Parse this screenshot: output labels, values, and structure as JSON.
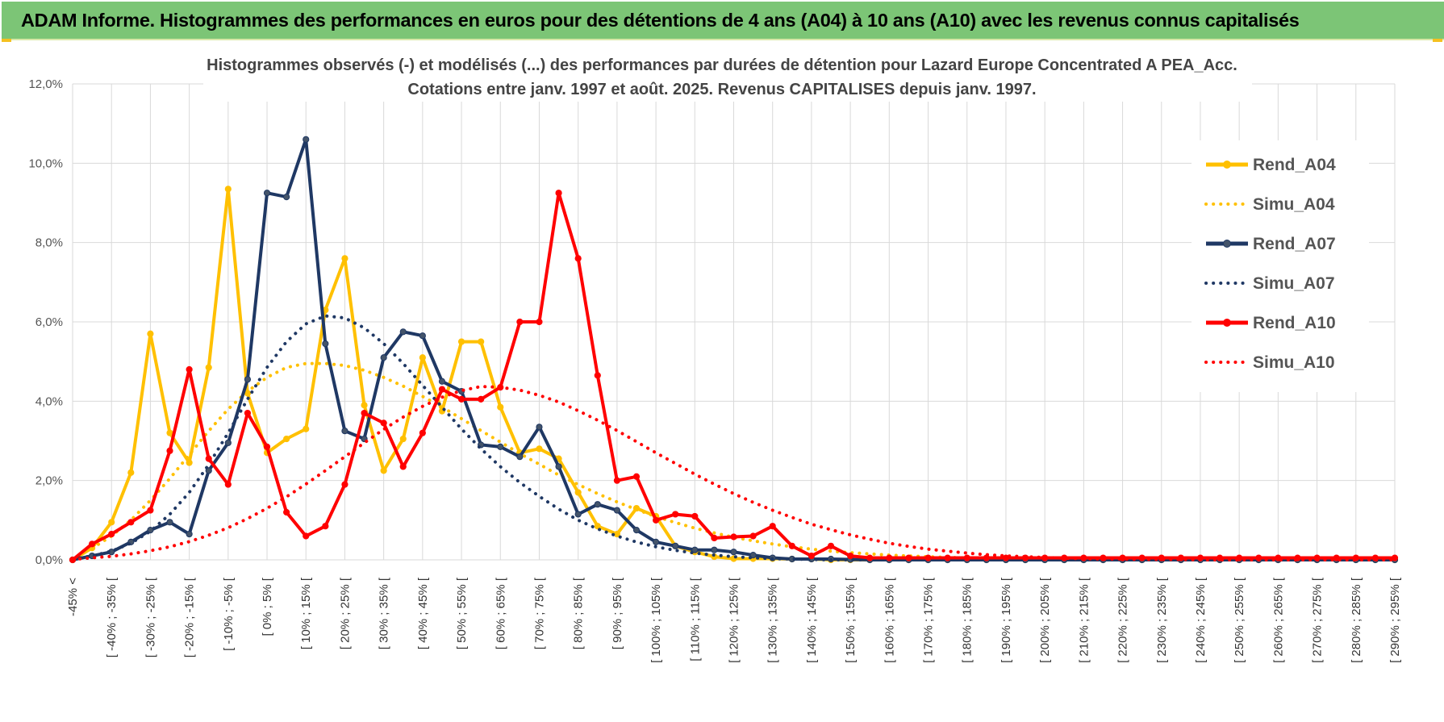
{
  "banner": {
    "title": "ADAM Informe. Histogrammes des performances en euros pour des détentions de 4 ans (A04) à 10 ans (A10) avec les revenus connus capitalisés"
  },
  "colors": {
    "banner_bg": "#7cc576",
    "A04": "#ffc000",
    "A07": "#1f3864",
    "A10": "#ff0000",
    "grid": "#d9d9d9"
  },
  "chart_data": {
    "type": "line",
    "title": "Histogrammes observés (-) et modélisés (...) des performances par durées de détention pour Lazard Europe Concentrated A PEA_Acc.",
    "subtitle": "Cotations entre janv. 1997 et août. 2025. Revenus CAPITALISES depuis janv. 1997.",
    "ylim": [
      0,
      12
    ],
    "yticks": [
      "0,0%",
      "2,0%",
      "4,0%",
      "6,0%",
      "8,0%",
      "10,0%",
      "12,0%"
    ],
    "x_labels": [
      "-45% <",
      "[ -40% ; -35% [",
      "[ -30% ; -25% [",
      "[ -20% ; -15% [",
      "[ -10% ; -5% [",
      "[ 0% ; 5% [",
      "[ 10% ; 15% [",
      "[ 20% ; 25% [",
      "[ 30% ; 35% [",
      "[ 40% ; 45% [",
      "[ 50% ; 55% [",
      "[ 60% ; 65% [",
      "[ 70% ; 75% [",
      "[ 80% ; 85% [",
      "[ 90% ; 95% [",
      "[ 100% ; 105% [",
      "[ 110% ; 115% [",
      "[ 120% ; 125% [",
      "[ 130% ; 135% [",
      "[ 140% ; 145% [",
      "[ 150% ; 155% [",
      "[ 160% ; 165% [",
      "[ 170% ; 175% [",
      "[ 180% ; 185% [",
      "[ 190% ; 195% [",
      "[ 200% ; 205% [",
      "[ 210% ; 215% [",
      "[ 220% ; 225% [",
      "[ 230% ; 235% [",
      "[ 240% ; 245% [",
      "[ 250% ; 255% [",
      "[ 260% ; 265% [",
      "[ 270% ; 275% [",
      "[ 280% ; 285% [",
      "[ 290% ; 295% ["
    ],
    "n_bins": 69,
    "legend": {
      "position": "right"
    },
    "grid": true,
    "series": [
      {
        "name": "Rend_A04",
        "style": "solid-marker",
        "color": "#ffc000",
        "values": [
          0.0,
          0.3,
          0.95,
          2.2,
          5.7,
          3.2,
          2.45,
          4.85,
          9.35,
          4.2,
          2.7,
          3.05,
          3.3,
          6.3,
          7.6,
          3.9,
          2.25,
          3.05,
          5.1,
          3.75,
          5.5,
          5.5,
          3.85,
          2.7,
          2.8,
          2.55,
          1.7,
          0.85,
          0.65,
          1.3,
          1.1,
          0.35,
          0.2,
          0.08,
          0.03,
          0.03,
          0.03,
          0.02,
          0.02,
          0.0,
          0.0,
          0.0,
          0.0,
          0.0,
          0.0,
          0.0,
          0.0,
          0.0,
          0.0,
          0.0,
          0.0,
          0.0,
          0.0,
          0.0,
          0.0,
          0.0,
          0.0,
          0.0,
          0.0,
          0.0,
          0.0,
          0.0,
          0.0,
          0.0,
          0.0,
          0.0,
          0.0,
          0.0,
          0.0
        ]
      },
      {
        "name": "Simu_A04",
        "style": "dotted",
        "color": "#ffc000",
        "values": [
          0.04,
          0.29,
          0.6,
          1.0,
          1.5,
          2.05,
          2.65,
          3.25,
          3.8,
          4.25,
          4.6,
          4.85,
          4.95,
          4.95,
          4.9,
          4.78,
          4.6,
          4.38,
          4.12,
          3.85,
          3.56,
          3.26,
          2.97,
          2.68,
          2.41,
          2.14,
          1.9,
          1.67,
          1.46,
          1.27,
          1.09,
          0.94,
          0.8,
          0.68,
          0.57,
          0.48,
          0.4,
          0.33,
          0.27,
          0.22,
          0.18,
          0.15,
          0.12,
          0.1,
          0.08,
          0.06,
          0.05,
          0.04,
          0.03,
          0.02,
          0.02,
          0.01,
          0.01,
          0.01,
          0.0,
          0.0,
          0.0,
          0.0,
          0.0,
          0.0,
          0.0,
          0.0,
          0.0,
          0.0,
          0.0,
          0.0,
          0.0,
          0.0,
          0.0
        ]
      },
      {
        "name": "Rend_A07",
        "style": "solid-marker",
        "color": "#1f3864",
        "values": [
          0.0,
          0.1,
          0.2,
          0.45,
          0.75,
          0.95,
          0.65,
          2.25,
          2.95,
          4.55,
          9.25,
          9.15,
          10.6,
          5.45,
          3.25,
          3.05,
          5.1,
          5.75,
          5.65,
          4.5,
          4.25,
          2.9,
          2.85,
          2.6,
          3.35,
          2.35,
          1.15,
          1.4,
          1.25,
          0.75,
          0.45,
          0.35,
          0.25,
          0.25,
          0.2,
          0.12,
          0.05,
          0.02,
          0.02,
          0.02,
          0.01,
          0.0,
          0.0,
          0.0,
          0.0,
          0.0,
          0.0,
          0.0,
          0.0,
          0.0,
          0.0,
          0.0,
          0.0,
          0.0,
          0.0,
          0.0,
          0.0,
          0.0,
          0.0,
          0.0,
          0.0,
          0.0,
          0.0,
          0.0,
          0.0,
          0.0,
          0.0,
          0.0,
          0.0
        ]
      },
      {
        "name": "Simu_A07",
        "style": "dotted",
        "color": "#1f3864",
        "values": [
          0.02,
          0.1,
          0.22,
          0.42,
          0.72,
          1.15,
          1.7,
          2.4,
          3.2,
          4.05,
          4.85,
          5.5,
          5.95,
          6.15,
          6.1,
          5.85,
          5.45,
          4.95,
          4.4,
          3.85,
          3.3,
          2.8,
          2.35,
          1.95,
          1.6,
          1.28,
          1.0,
          0.78,
          0.6,
          0.45,
          0.33,
          0.24,
          0.17,
          0.12,
          0.08,
          0.05,
          0.03,
          0.02,
          0.01,
          0.0,
          0.0,
          0.0,
          0.0,
          0.0,
          0.0,
          0.0,
          0.0,
          0.0,
          0.0,
          0.0,
          0.0,
          0.0,
          0.0,
          0.0,
          0.0,
          0.0,
          0.0,
          0.0,
          0.0,
          0.0,
          0.0,
          0.0,
          0.0,
          0.0,
          0.0,
          0.0,
          0.0,
          0.0,
          0.0
        ]
      },
      {
        "name": "Rend_A10",
        "style": "solid-marker",
        "color": "#ff0000",
        "values": [
          0.0,
          0.4,
          0.65,
          0.95,
          1.25,
          2.75,
          4.8,
          2.55,
          1.9,
          3.7,
          2.85,
          1.2,
          0.6,
          0.85,
          1.9,
          3.7,
          3.45,
          2.35,
          3.2,
          4.3,
          4.05,
          4.05,
          4.35,
          6.0,
          6.0,
          9.25,
          7.6,
          4.65,
          2.0,
          2.1,
          1.0,
          1.15,
          1.1,
          0.55,
          0.58,
          0.6,
          0.85,
          0.35,
          0.1,
          0.35,
          0.1,
          0.05,
          0.05,
          0.05,
          0.05,
          0.05,
          0.05,
          0.05,
          0.05,
          0.05,
          0.05,
          0.05,
          0.05,
          0.05,
          0.05,
          0.05,
          0.05,
          0.05,
          0.05,
          0.05,
          0.05,
          0.05,
          0.05,
          0.05,
          0.05,
          0.05,
          0.05,
          0.05,
          0.05
        ]
      },
      {
        "name": "Simu_A10",
        "style": "dotted",
        "color": "#ff0000",
        "values": [
          0.01,
          0.05,
          0.09,
          0.15,
          0.23,
          0.33,
          0.46,
          0.62,
          0.81,
          1.04,
          1.3,
          1.59,
          1.91,
          2.25,
          2.6,
          2.95,
          3.29,
          3.6,
          3.87,
          4.1,
          4.27,
          4.37,
          4.35,
          4.28,
          4.15,
          3.98,
          3.76,
          3.52,
          3.26,
          2.98,
          2.7,
          2.43,
          2.16,
          1.91,
          1.67,
          1.45,
          1.25,
          1.07,
          0.9,
          0.76,
          0.63,
          0.52,
          0.42,
          0.34,
          0.27,
          0.22,
          0.17,
          0.13,
          0.1,
          0.08,
          0.06,
          0.04,
          0.03,
          0.02,
          0.02,
          0.01,
          0.01,
          0.01,
          0.0,
          0.0,
          0.0,
          0.0,
          0.0,
          0.0,
          0.0,
          0.0,
          0.0,
          0.0,
          0.0
        ]
      }
    ]
  }
}
